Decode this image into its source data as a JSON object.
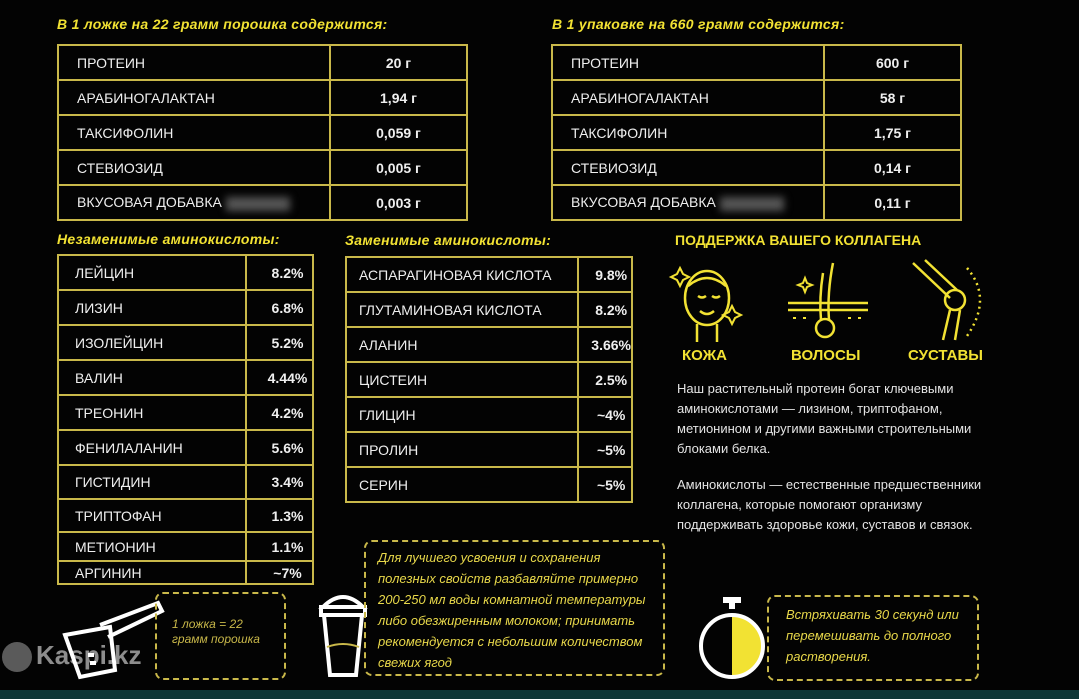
{
  "per_scoop": {
    "title": "В 1 ложке на 22 грамм порошка содержится:",
    "rows": [
      {
        "name": "ПРОТЕИН",
        "value": "20 г"
      },
      {
        "name": "АРАБИНОГАЛАКТАН",
        "value": "1,94 г"
      },
      {
        "name": "ТАКСИФОЛИН",
        "value": "0,059 г"
      },
      {
        "name": "СТЕВИОЗИД",
        "value": "0,005 г"
      },
      {
        "name": "ВКУСОВАЯ ДОБАВКА",
        "value": "0,003 г"
      }
    ]
  },
  "per_pack": {
    "title": "В 1 упаковке на 660 грамм содержится:",
    "rows": [
      {
        "name": "ПРОТЕИН",
        "value": "600 г"
      },
      {
        "name": "АРАБИНОГАЛАКТАН",
        "value": "58 г"
      },
      {
        "name": "ТАКСИФОЛИН",
        "value": "1,75 г"
      },
      {
        "name": "СТЕВИОЗИД",
        "value": "0,14 г"
      },
      {
        "name": "ВКУСОВАЯ ДОБАВКА",
        "value": "0,11 г"
      }
    ]
  },
  "essential": {
    "title": "Незаменимые аминокислоты:",
    "rows": [
      {
        "name": "ЛЕЙЦИН",
        "value": "8.2%"
      },
      {
        "name": "ЛИЗИН",
        "value": "6.8%"
      },
      {
        "name": "ИЗОЛЕЙЦИН",
        "value": "5.2%"
      },
      {
        "name": "ВАЛИН",
        "value": "4.44%"
      },
      {
        "name": "ТРЕОНИН",
        "value": "4.2%"
      },
      {
        "name": "ФЕНИЛАЛАНИН",
        "value": "5.6%"
      },
      {
        "name": "ГИСТИДИН",
        "value": "3.4%"
      },
      {
        "name": "ТРИПТОФАН",
        "value": "1.3%"
      },
      {
        "name": "МЕТИОНИН",
        "value": "1.1%"
      },
      {
        "name": "АРГИНИН",
        "value": "~7%"
      }
    ]
  },
  "nonessential": {
    "title": "Заменимые аминокислоты:",
    "rows": [
      {
        "name": "АСПАРАГИНОВАЯ КИСЛОТА",
        "value": "9.8%"
      },
      {
        "name": "ГЛУТАМИНОВАЯ КИСЛОТА",
        "value": "8.2%"
      },
      {
        "name": "АЛАНИН",
        "value": "3.66%"
      },
      {
        "name": "ЦИСТЕИН",
        "value": "2.5%"
      },
      {
        "name": "ГЛИЦИН",
        "value": "~4%"
      },
      {
        "name": "ПРОЛИН",
        "value": "~5%"
      },
      {
        "name": "СЕРИН",
        "value": "~5%"
      }
    ]
  },
  "collagen": {
    "title": "ПОДДЕРЖКА ВАШЕГО КОЛЛАГЕНА",
    "icons": [
      {
        "icon": "face-icon",
        "label": "КОЖА"
      },
      {
        "icon": "hair-icon",
        "label": "ВОЛОСЫ"
      },
      {
        "icon": "knee-joint-icon",
        "label": "СУСТАВЫ"
      }
    ],
    "para1": "Наш растительный протеин богат ключевыми аминокислотами — лизином, триптофаном, метионином и другими важными строительными блоками белка.",
    "para2": "Аминокислоты — естественные предшественники коллагена, которые помогают организму поддерживать здоровье кожи, суставов и связок."
  },
  "tips": {
    "scoop": "1 ложка = 22 грамм порошка",
    "dilute": "Для лучшего усвоения и сохранения полезных свойств разбавляйте примерно 200-250 мл воды комнатной температуры либо обезжиренным молоком; принимать рекомендуется с небольшим количеством свежих ягод",
    "shake": "Встряхивать 30 секунд или перемешивать до полного растворения."
  },
  "watermark": "Kaspi.kz",
  "colors": {
    "accent": "#f2e233",
    "border": "#c9b84a",
    "background": "#030303",
    "bottom_bar": "#0e3535"
  }
}
